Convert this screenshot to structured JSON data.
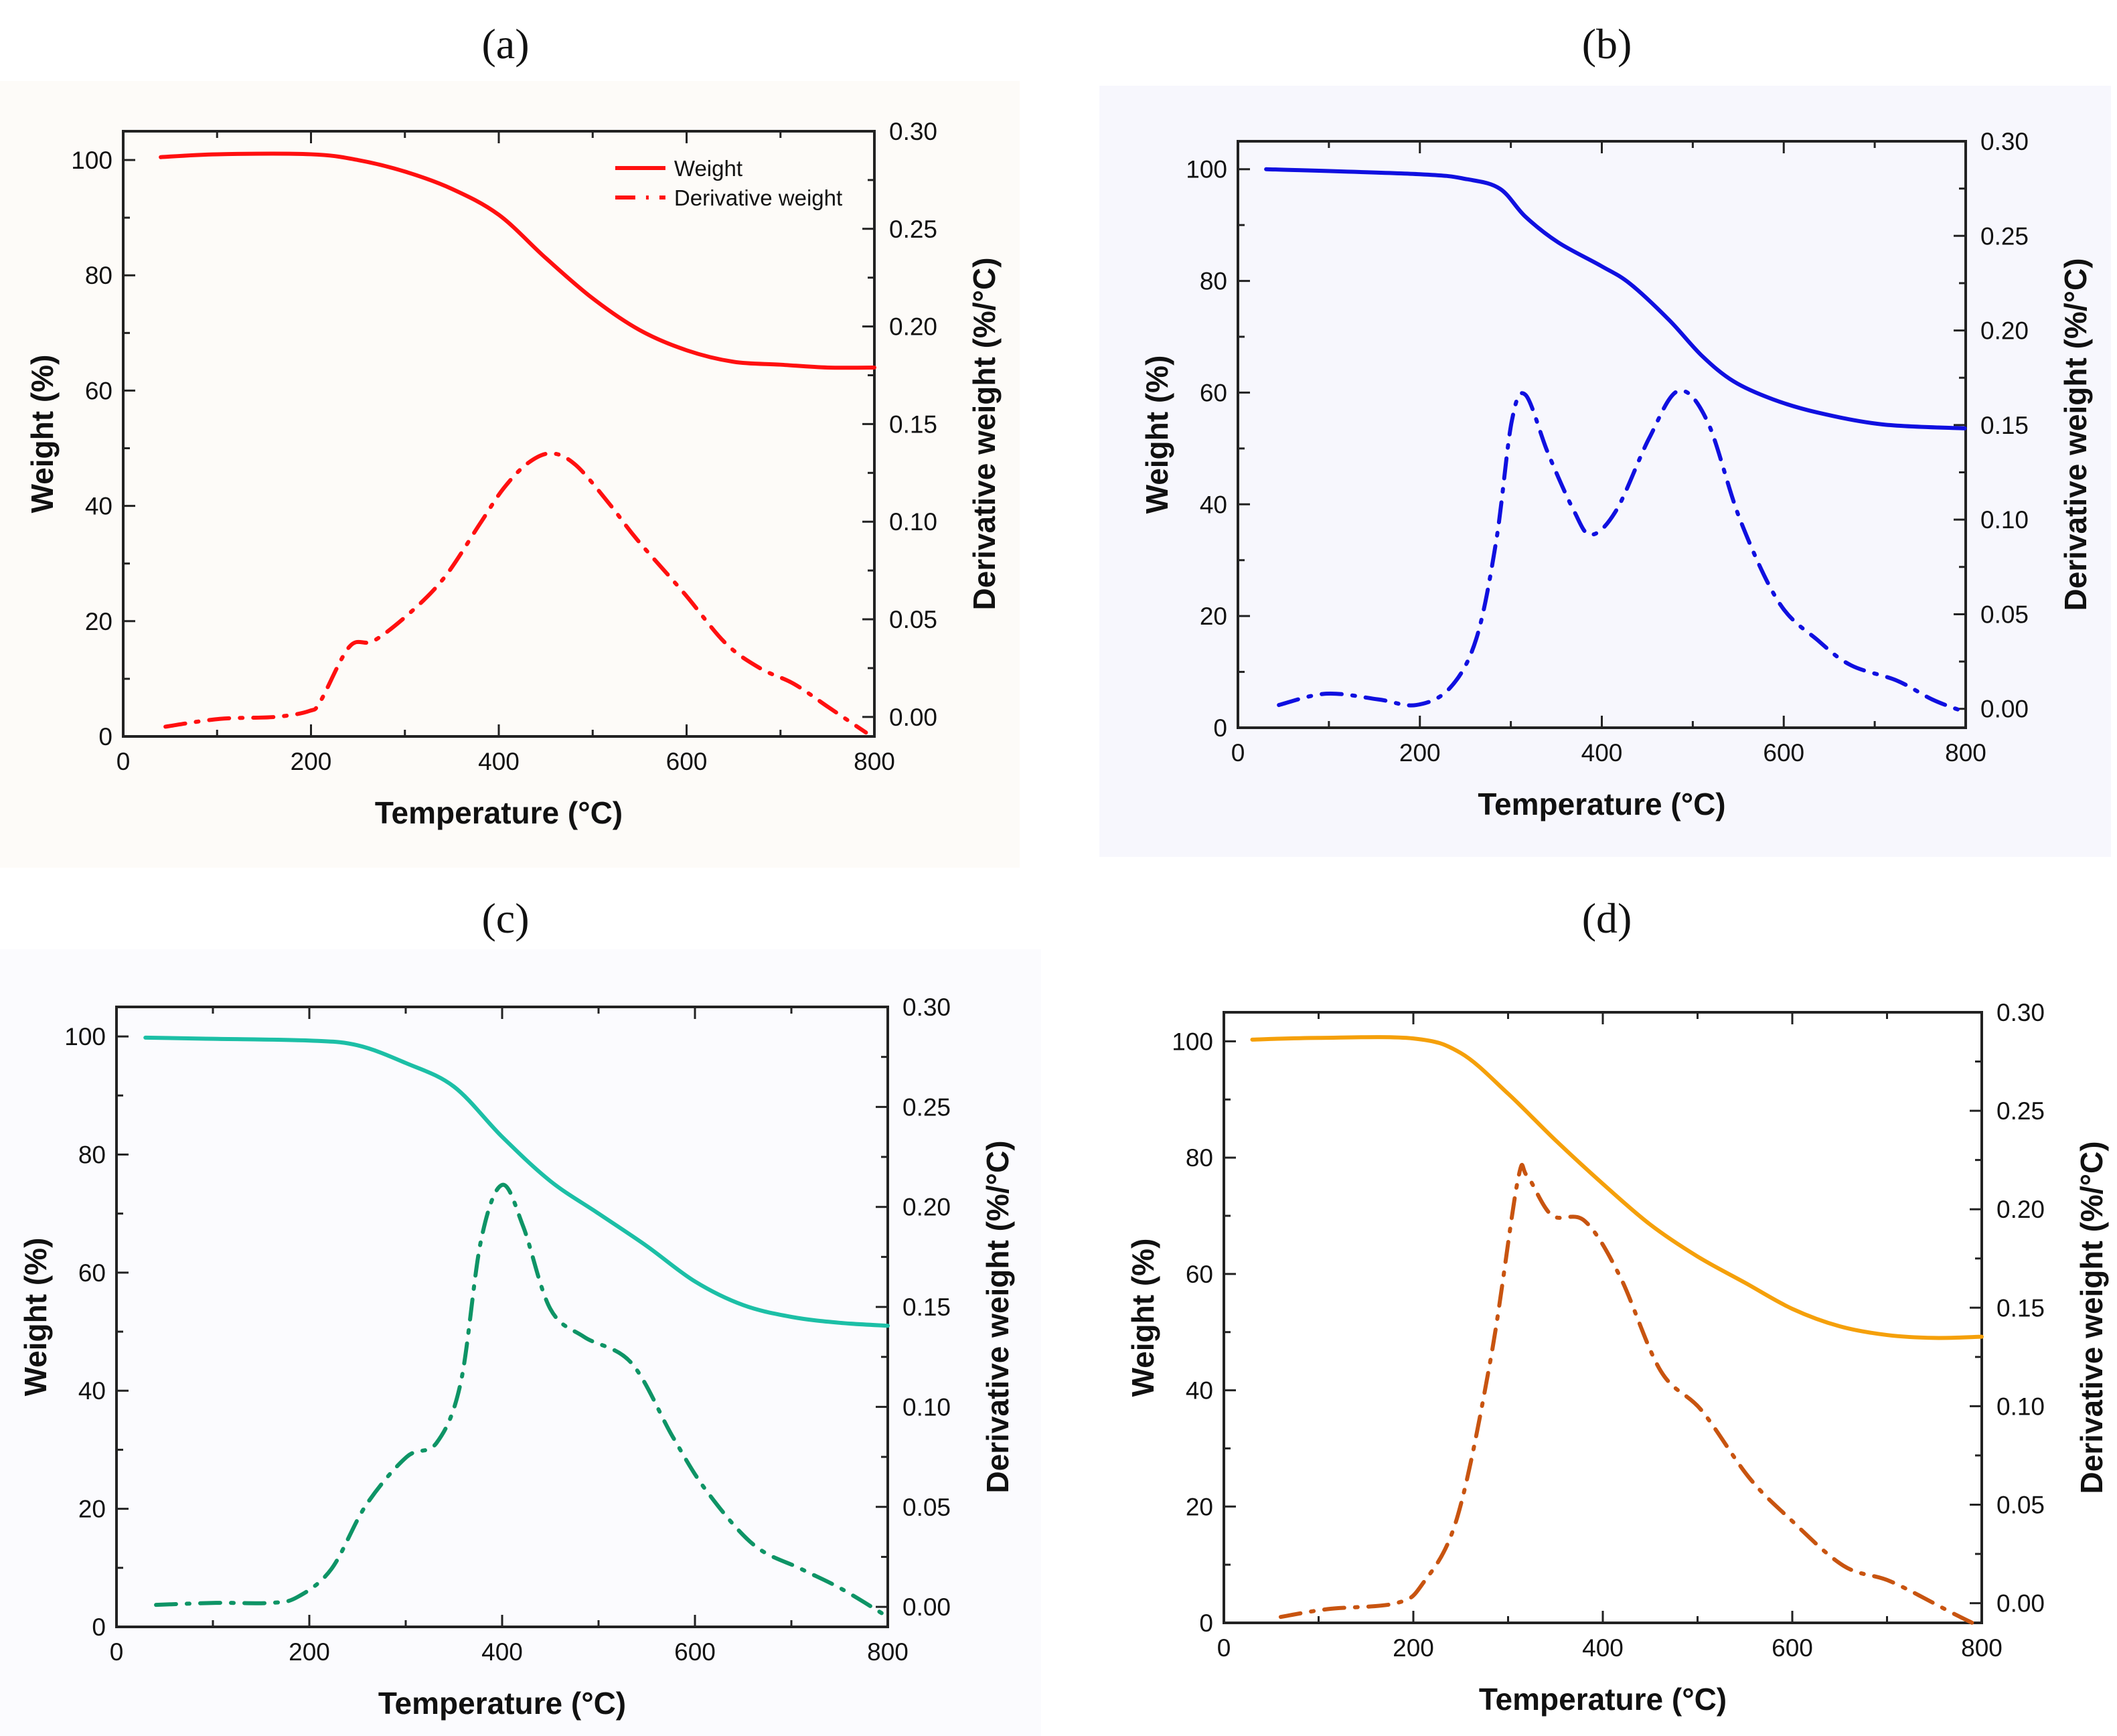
{
  "chart_data": [
    {
      "type": "line",
      "title": "(a)",
      "xlabel": "Temperature (°C)",
      "ylabel": "Weight (%)",
      "y2label": "Derivative weight (%/°C)",
      "xlim": [
        0,
        800
      ],
      "ylim": [
        0,
        105
      ],
      "y2lim": [
        -0.01,
        0.3
      ],
      "xticks": [
        "0",
        "200",
        "400",
        "600",
        "800"
      ],
      "yticks": [
        "0",
        "20",
        "40",
        "60",
        "80",
        "100"
      ],
      "y2ticks": [
        "0.00",
        "0.05",
        "0.10",
        "0.15",
        "0.20",
        "0.25",
        "0.30"
      ],
      "legend": {
        "placement": "top-right",
        "entries": [
          "Weight",
          "Derivative weight"
        ]
      },
      "background": "#fdfbf8",
      "series": [
        {
          "name": "Weight",
          "axis": "left",
          "style": "solid",
          "color": "#ff1010",
          "x": [
            40,
            100,
            200,
            250,
            300,
            350,
            400,
            450,
            500,
            550,
            600,
            650,
            700,
            750,
            800
          ],
          "y": [
            100.5,
            101,
            101,
            100,
            98,
            95,
            90.5,
            83,
            76,
            70.5,
            67,
            65,
            64.5,
            64,
            64
          ]
        },
        {
          "name": "Derivative weight",
          "axis": "right",
          "style": "dashdot",
          "color": "#ff1010",
          "x": [
            45,
            103,
            162,
            198,
            210,
            241,
            267,
            307,
            343,
            380,
            405,
            431,
            456,
            482,
            518,
            547,
            598,
            641,
            678,
            714,
            751,
            791
          ],
          "y": [
            -0.005,
            -0.001,
            0.0,
            0.003,
            0.008,
            0.036,
            0.039,
            0.054,
            0.072,
            0.099,
            0.117,
            0.13,
            0.135,
            0.129,
            0.109,
            0.091,
            0.063,
            0.038,
            0.025,
            0.017,
            0.005,
            -0.008
          ]
        }
      ]
    },
    {
      "type": "line",
      "title": "(b)",
      "xlabel": "Temperature (°C)",
      "ylabel": "Weight (%)",
      "y2label": "Derivative weight (%/°C)",
      "xlim": [
        0,
        800
      ],
      "ylim": [
        0,
        105
      ],
      "y2lim": [
        -0.01,
        0.3
      ],
      "xticks": [
        "0",
        "200",
        "400",
        "600",
        "800"
      ],
      "yticks": [
        "0",
        "20",
        "40",
        "60",
        "80",
        "100"
      ],
      "y2ticks": [
        "0.00",
        "0.05",
        "0.10",
        "0.15",
        "0.20",
        "0.25",
        "0.30"
      ],
      "background": "#f7f7fd",
      "series": [
        {
          "name": "Weight",
          "axis": "left",
          "style": "solid",
          "color": "#1010e0",
          "x": [
            31,
            200,
            252,
            288,
            316,
            352,
            399,
            431,
            474,
            510,
            545,
            588,
            638,
            709,
            799
          ],
          "y": [
            100,
            99.1,
            98.2,
            96.5,
            91.5,
            86.9,
            82.7,
            79.5,
            73,
            66.6,
            62,
            58.8,
            56.4,
            54.3,
            53.6
          ]
        },
        {
          "name": "Derivative weight",
          "axis": "right",
          "style": "dashdot",
          "color": "#1010e0",
          "x": [
            45,
            97,
            154,
            196,
            233,
            262,
            284,
            301,
            316,
            341,
            369,
            388,
            416,
            452,
            484,
            516,
            552,
            595,
            638,
            674,
            724,
            763,
            795
          ],
          "y": [
            0.002,
            0.008,
            0.005,
            0.002,
            0.011,
            0.037,
            0.089,
            0.152,
            0.166,
            0.135,
            0.105,
            0.092,
            0.105,
            0.143,
            0.168,
            0.152,
            0.1,
            0.056,
            0.036,
            0.023,
            0.015,
            0.005,
            -0.001
          ]
        }
      ]
    },
    {
      "type": "line",
      "title": "(c)",
      "xlabel": "Temperature (°C)",
      "ylabel": "Weight (%)",
      "y2label": "Derivative weight (%/°C)",
      "xlim": [
        0,
        800
      ],
      "ylim": [
        0,
        105
      ],
      "y2lim": [
        -0.01,
        0.3
      ],
      "xticks": [
        "0",
        "200",
        "400",
        "600",
        "800"
      ],
      "yticks": [
        "0",
        "20",
        "40",
        "60",
        "80",
        "100"
      ],
      "y2ticks": [
        "0.00",
        "0.05",
        "0.10",
        "0.15",
        "0.20",
        "0.25",
        "0.30"
      ],
      "background": "#fbfbfe",
      "series": [
        {
          "name": "Weight",
          "axis": "left",
          "style": "solid",
          "color": "#1cbfa6",
          "x": [
            30,
            100,
            200,
            250,
            300,
            350,
            400,
            450,
            500,
            550,
            600,
            650,
            700,
            750,
            800
          ],
          "y": [
            99.8,
            99.6,
            99.3,
            98.5,
            95.5,
            91.5,
            83,
            75.5,
            70,
            64.5,
            58.5,
            54.5,
            52.5,
            51.5,
            51
          ]
        },
        {
          "name": "Derivative weight",
          "axis": "right",
          "style": "dashdot",
          "color": "#0e9466",
          "x": [
            41,
            103,
            160,
            188,
            223,
            259,
            301,
            332,
            357,
            378,
            400,
            422,
            450,
            485,
            534,
            577,
            612,
            661,
            710,
            752,
            800
          ],
          "y": [
            0.001,
            0.002,
            0.002,
            0.005,
            0.019,
            0.051,
            0.075,
            0.082,
            0.112,
            0.183,
            0.211,
            0.19,
            0.149,
            0.135,
            0.122,
            0.085,
            0.058,
            0.031,
            0.019,
            0.009,
            -0.005
          ]
        }
      ]
    },
    {
      "type": "line",
      "title": "(d)",
      "xlabel": "Temperature (°C)",
      "ylabel": "Weight (%)",
      "y2label": "Derivative weight (%/°C)",
      "xlim": [
        0,
        800
      ],
      "ylim": [
        0,
        105
      ],
      "y2lim": [
        -0.01,
        0.3
      ],
      "xticks": [
        "0",
        "200",
        "400",
        "600",
        "800"
      ],
      "yticks": [
        "0",
        "20",
        "40",
        "60",
        "80",
        "100"
      ],
      "y2ticks": [
        "0.00",
        "0.05",
        "0.10",
        "0.15",
        "0.20",
        "0.25",
        "0.30"
      ],
      "background": "#ffffff",
      "series": [
        {
          "name": "Weight",
          "axis": "left",
          "style": "solid",
          "color": "#f5a00a",
          "x": [
            30,
            100,
            200,
            250,
            300,
            350,
            400,
            450,
            500,
            550,
            600,
            650,
            700,
            750,
            800
          ],
          "y": [
            100.3,
            100.6,
            100.5,
            98,
            91,
            83,
            75.5,
            68.5,
            63,
            58.5,
            54,
            51,
            49.5,
            49,
            49.2
          ]
        },
        {
          "name": "Derivative weight",
          "axis": "right",
          "style": "dashdot",
          "color": "#c85410",
          "x": [
            60,
            110,
            182,
            210,
            246,
            282,
            310,
            320,
            346,
            381,
            418,
            461,
            504,
            554,
            597,
            654,
            704,
            769,
            790
          ],
          "y": [
            -0.007,
            -0.003,
            0.0,
            0.01,
            0.043,
            0.125,
            0.214,
            0.217,
            0.197,
            0.194,
            0.166,
            0.118,
            0.098,
            0.064,
            0.043,
            0.019,
            0.011,
            -0.005,
            -0.01
          ]
        }
      ]
    }
  ]
}
